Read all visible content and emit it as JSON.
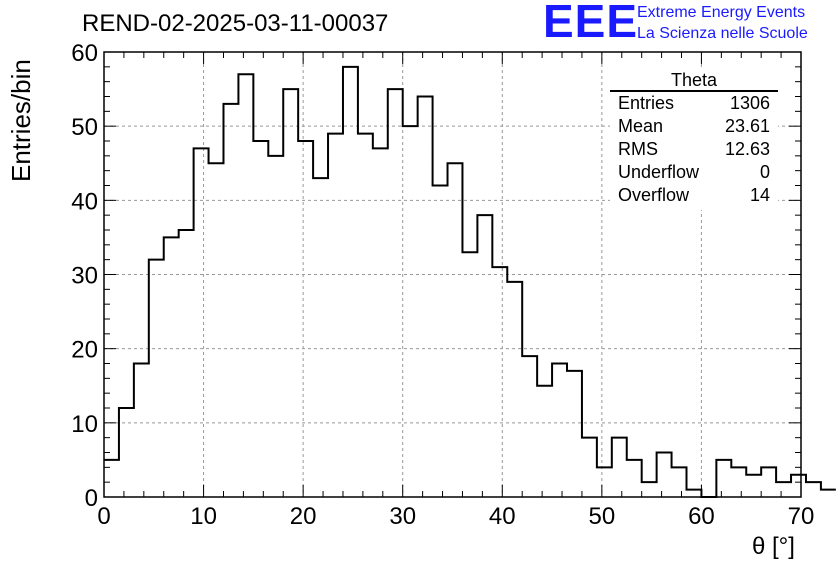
{
  "title": "REND-02-2025-03-11-00037",
  "logo": {
    "mark": "EEE",
    "line1": "Extreme Energy Events",
    "line2": "La Scienza nelle Scuole",
    "color": "#1a1aff"
  },
  "stats_box": {
    "title": "Theta",
    "rows": [
      {
        "label": "Entries",
        "value": "1306"
      },
      {
        "label": "Mean",
        "value": "23.61"
      },
      {
        "label": "RMS",
        "value": "12.63"
      },
      {
        "label": "Underflow",
        "value": "0"
      },
      {
        "label": "Overflow",
        "value": "14"
      }
    ]
  },
  "chart_data": {
    "type": "histogram",
    "xlabel": "θ [°]",
    "ylabel": "Entries/bin",
    "xlim": [
      0,
      70
    ],
    "ylim": [
      0,
      60
    ],
    "xticks": [
      0,
      10,
      20,
      30,
      40,
      50,
      60,
      70
    ],
    "yticks": [
      0,
      10,
      20,
      30,
      40,
      50,
      60
    ],
    "grid": true,
    "bin_width": 1.5,
    "bin_start": 0,
    "values": [
      5,
      12,
      18,
      32,
      35,
      36,
      47,
      45,
      53,
      57,
      48,
      46,
      55,
      48,
      43,
      49,
      58,
      49,
      47,
      55,
      50,
      54,
      42,
      45,
      33,
      38,
      31,
      29,
      19,
      15,
      18,
      17,
      8,
      4,
      8,
      5,
      2,
      6,
      4,
      1,
      0,
      5,
      4,
      3,
      4,
      2,
      3,
      2,
      1
    ]
  }
}
